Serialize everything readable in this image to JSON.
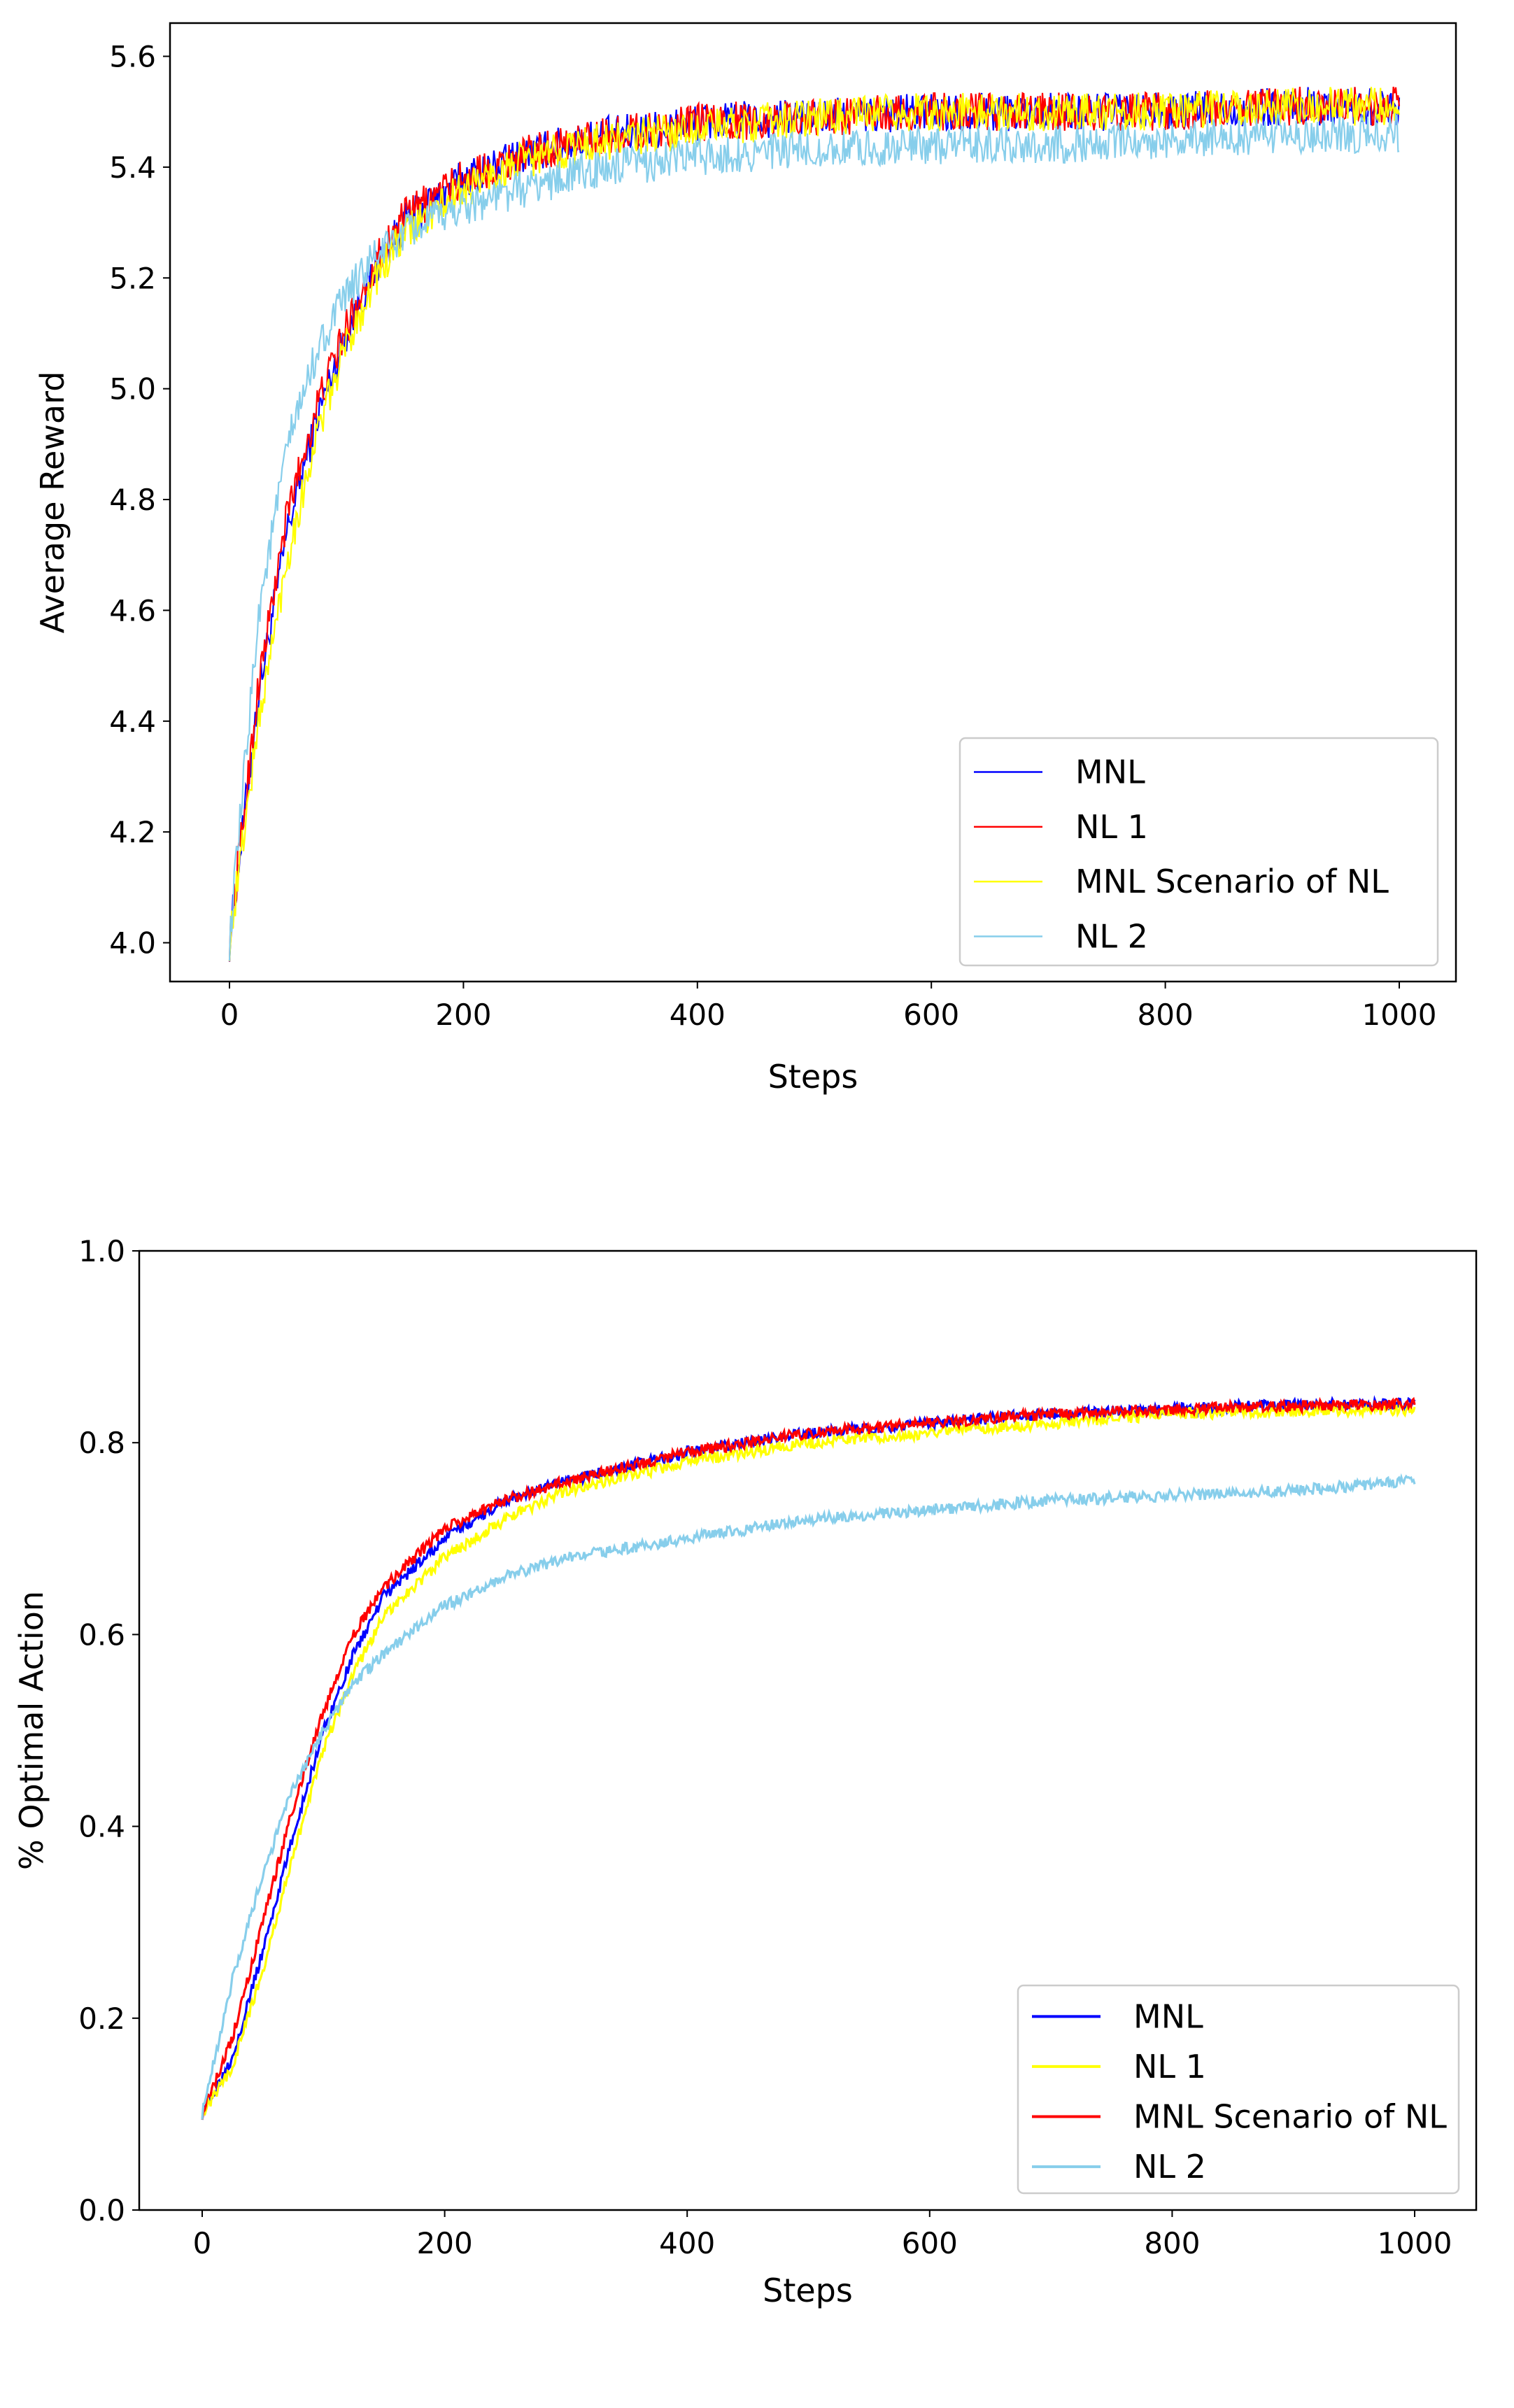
{
  "chart_data": [
    {
      "type": "line",
      "title": "",
      "xlabel": "Steps",
      "ylabel": "Average Reward",
      "xlim": [
        -50,
        1050
      ],
      "ylim": [
        3.93,
        5.66
      ],
      "xticks": [
        0,
        200,
        400,
        600,
        800,
        1000
      ],
      "yticks": [
        4.0,
        4.2,
        4.4,
        4.6,
        4.8,
        5.0,
        5.2,
        5.4,
        5.6
      ],
      "ytick_labels": [
        "4.0",
        "4.2",
        "4.4",
        "4.6",
        "4.8",
        "5.0",
        "5.2",
        "5.4",
        "5.6"
      ],
      "grid": false,
      "legend_position": "bottom-right",
      "x": [
        0,
        25,
        50,
        75,
        100,
        125,
        150,
        200,
        250,
        300,
        400,
        500,
        600,
        700,
        800,
        900,
        1000
      ],
      "series": [
        {
          "name": "MNL",
          "color": "#0000ff",
          "values": [
            4.0,
            4.45,
            4.75,
            4.95,
            5.1,
            5.22,
            5.3,
            5.38,
            5.42,
            5.45,
            5.48,
            5.49,
            5.5,
            5.5,
            5.5,
            5.51,
            5.51
          ]
        },
        {
          "name": "NL 1",
          "color": "#ff0000",
          "values": [
            4.0,
            4.47,
            4.78,
            4.97,
            5.11,
            5.23,
            5.31,
            5.38,
            5.42,
            5.45,
            5.48,
            5.49,
            5.5,
            5.5,
            5.5,
            5.51,
            5.51
          ]
        },
        {
          "name": "MNL Scenario of NL",
          "color": "#ffff00",
          "values": [
            4.0,
            4.4,
            4.7,
            4.92,
            5.08,
            5.2,
            5.28,
            5.36,
            5.41,
            5.44,
            5.47,
            5.49,
            5.5,
            5.5,
            5.5,
            5.51,
            5.51
          ]
        },
        {
          "name": "NL 2",
          "color": "#87ceeb",
          "values": [
            4.0,
            4.6,
            4.9,
            5.07,
            5.17,
            5.24,
            5.28,
            5.33,
            5.36,
            5.39,
            5.42,
            5.43,
            5.44,
            5.44,
            5.45,
            5.46,
            5.46
          ]
        }
      ]
    },
    {
      "type": "line",
      "title": "",
      "xlabel": "Steps",
      "ylabel": "% Optimal Action",
      "xlim": [
        -50,
        1050
      ],
      "ylim": [
        0.0,
        1.0
      ],
      "xticks": [
        0,
        200,
        400,
        600,
        800,
        1000
      ],
      "yticks": [
        0.0,
        0.2,
        0.4,
        0.6,
        0.8,
        1.0
      ],
      "ytick_labels": [
        "0.0",
        "0.2",
        "0.4",
        "0.6",
        "0.8",
        "1.0"
      ],
      "grid": false,
      "legend_position": "bottom-right",
      "x": [
        0,
        25,
        50,
        75,
        100,
        125,
        150,
        200,
        250,
        300,
        400,
        500,
        600,
        700,
        800,
        900,
        1000
      ],
      "series": [
        {
          "name": "MNL",
          "color": "#0000ff",
          "values": [
            0.1,
            0.16,
            0.27,
            0.39,
            0.5,
            0.58,
            0.64,
            0.7,
            0.74,
            0.76,
            0.79,
            0.81,
            0.82,
            0.83,
            0.835,
            0.84,
            0.84
          ]
        },
        {
          "name": "NL 1",
          "color": "#ffff00",
          "values": [
            0.1,
            0.15,
            0.25,
            0.37,
            0.48,
            0.56,
            0.62,
            0.68,
            0.72,
            0.75,
            0.78,
            0.8,
            0.81,
            0.82,
            0.83,
            0.833,
            0.835
          ]
        },
        {
          "name": "MNL Scenario of NL",
          "color": "#ff0000",
          "values": [
            0.1,
            0.18,
            0.3,
            0.42,
            0.52,
            0.6,
            0.65,
            0.71,
            0.74,
            0.76,
            0.79,
            0.81,
            0.82,
            0.83,
            0.835,
            0.838,
            0.84
          ]
        },
        {
          "name": "NL 2",
          "color": "#87ceeb",
          "values": [
            0.1,
            0.24,
            0.35,
            0.44,
            0.5,
            0.55,
            0.58,
            0.63,
            0.66,
            0.68,
            0.7,
            0.72,
            0.73,
            0.74,
            0.745,
            0.75,
            0.76
          ]
        }
      ]
    }
  ]
}
